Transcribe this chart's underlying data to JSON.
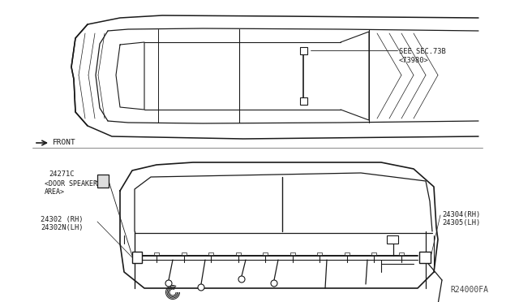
{
  "background_color": "#ffffff",
  "line_color": "#1a1a1a",
  "text_color": "#1a1a1a",
  "fig_width": 6.4,
  "fig_height": 3.72,
  "dpi": 100,
  "watermark": "R24000FA",
  "label_sec": "SEE SEC.73B",
  "label_73980": "<73980>",
  "front_label": "FRONT",
  "label_24271c": "24271C",
  "label_door_speaker1": "<DOOR SPEAKER",
  "label_door_speaker2": "AREA>",
  "label_24302rh": "24302 (RH)",
  "label_24302nlh": "24302N(LH)",
  "label_24304rh": "24304(RH)",
  "label_24305lh": "24305(LH)"
}
